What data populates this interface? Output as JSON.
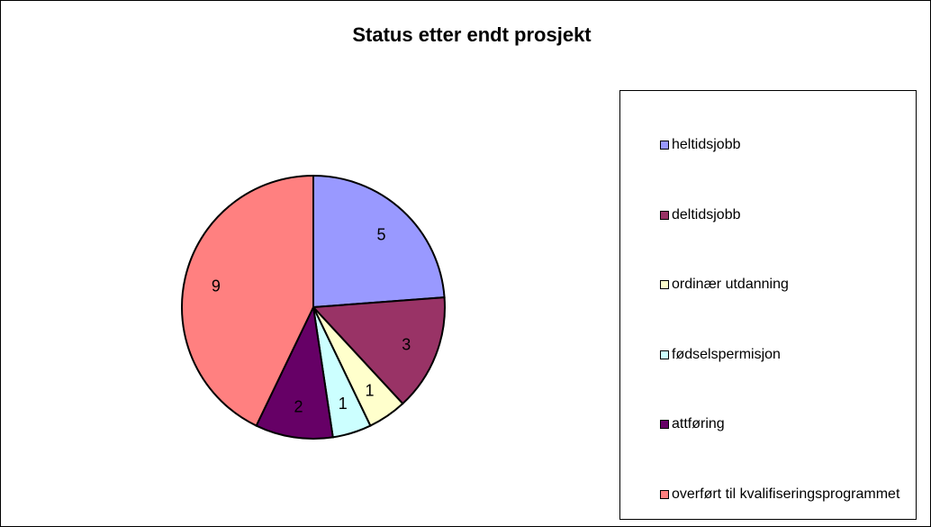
{
  "chart_data": {
    "type": "pie",
    "title": "Status etter endt prosjekt",
    "categories": [
      "heltidsjobb",
      "deltidsjobb",
      "ordinær utdanning",
      "fødselspermisjon",
      "attføring",
      "overført til kvalifiseringsprogrammet"
    ],
    "values": [
      5,
      3,
      1,
      1,
      2,
      9
    ],
    "colors": [
      "#9999ff",
      "#993366",
      "#ffffcc",
      "#ccffff",
      "#660066",
      "#ff8080"
    ],
    "legend": "right"
  }
}
